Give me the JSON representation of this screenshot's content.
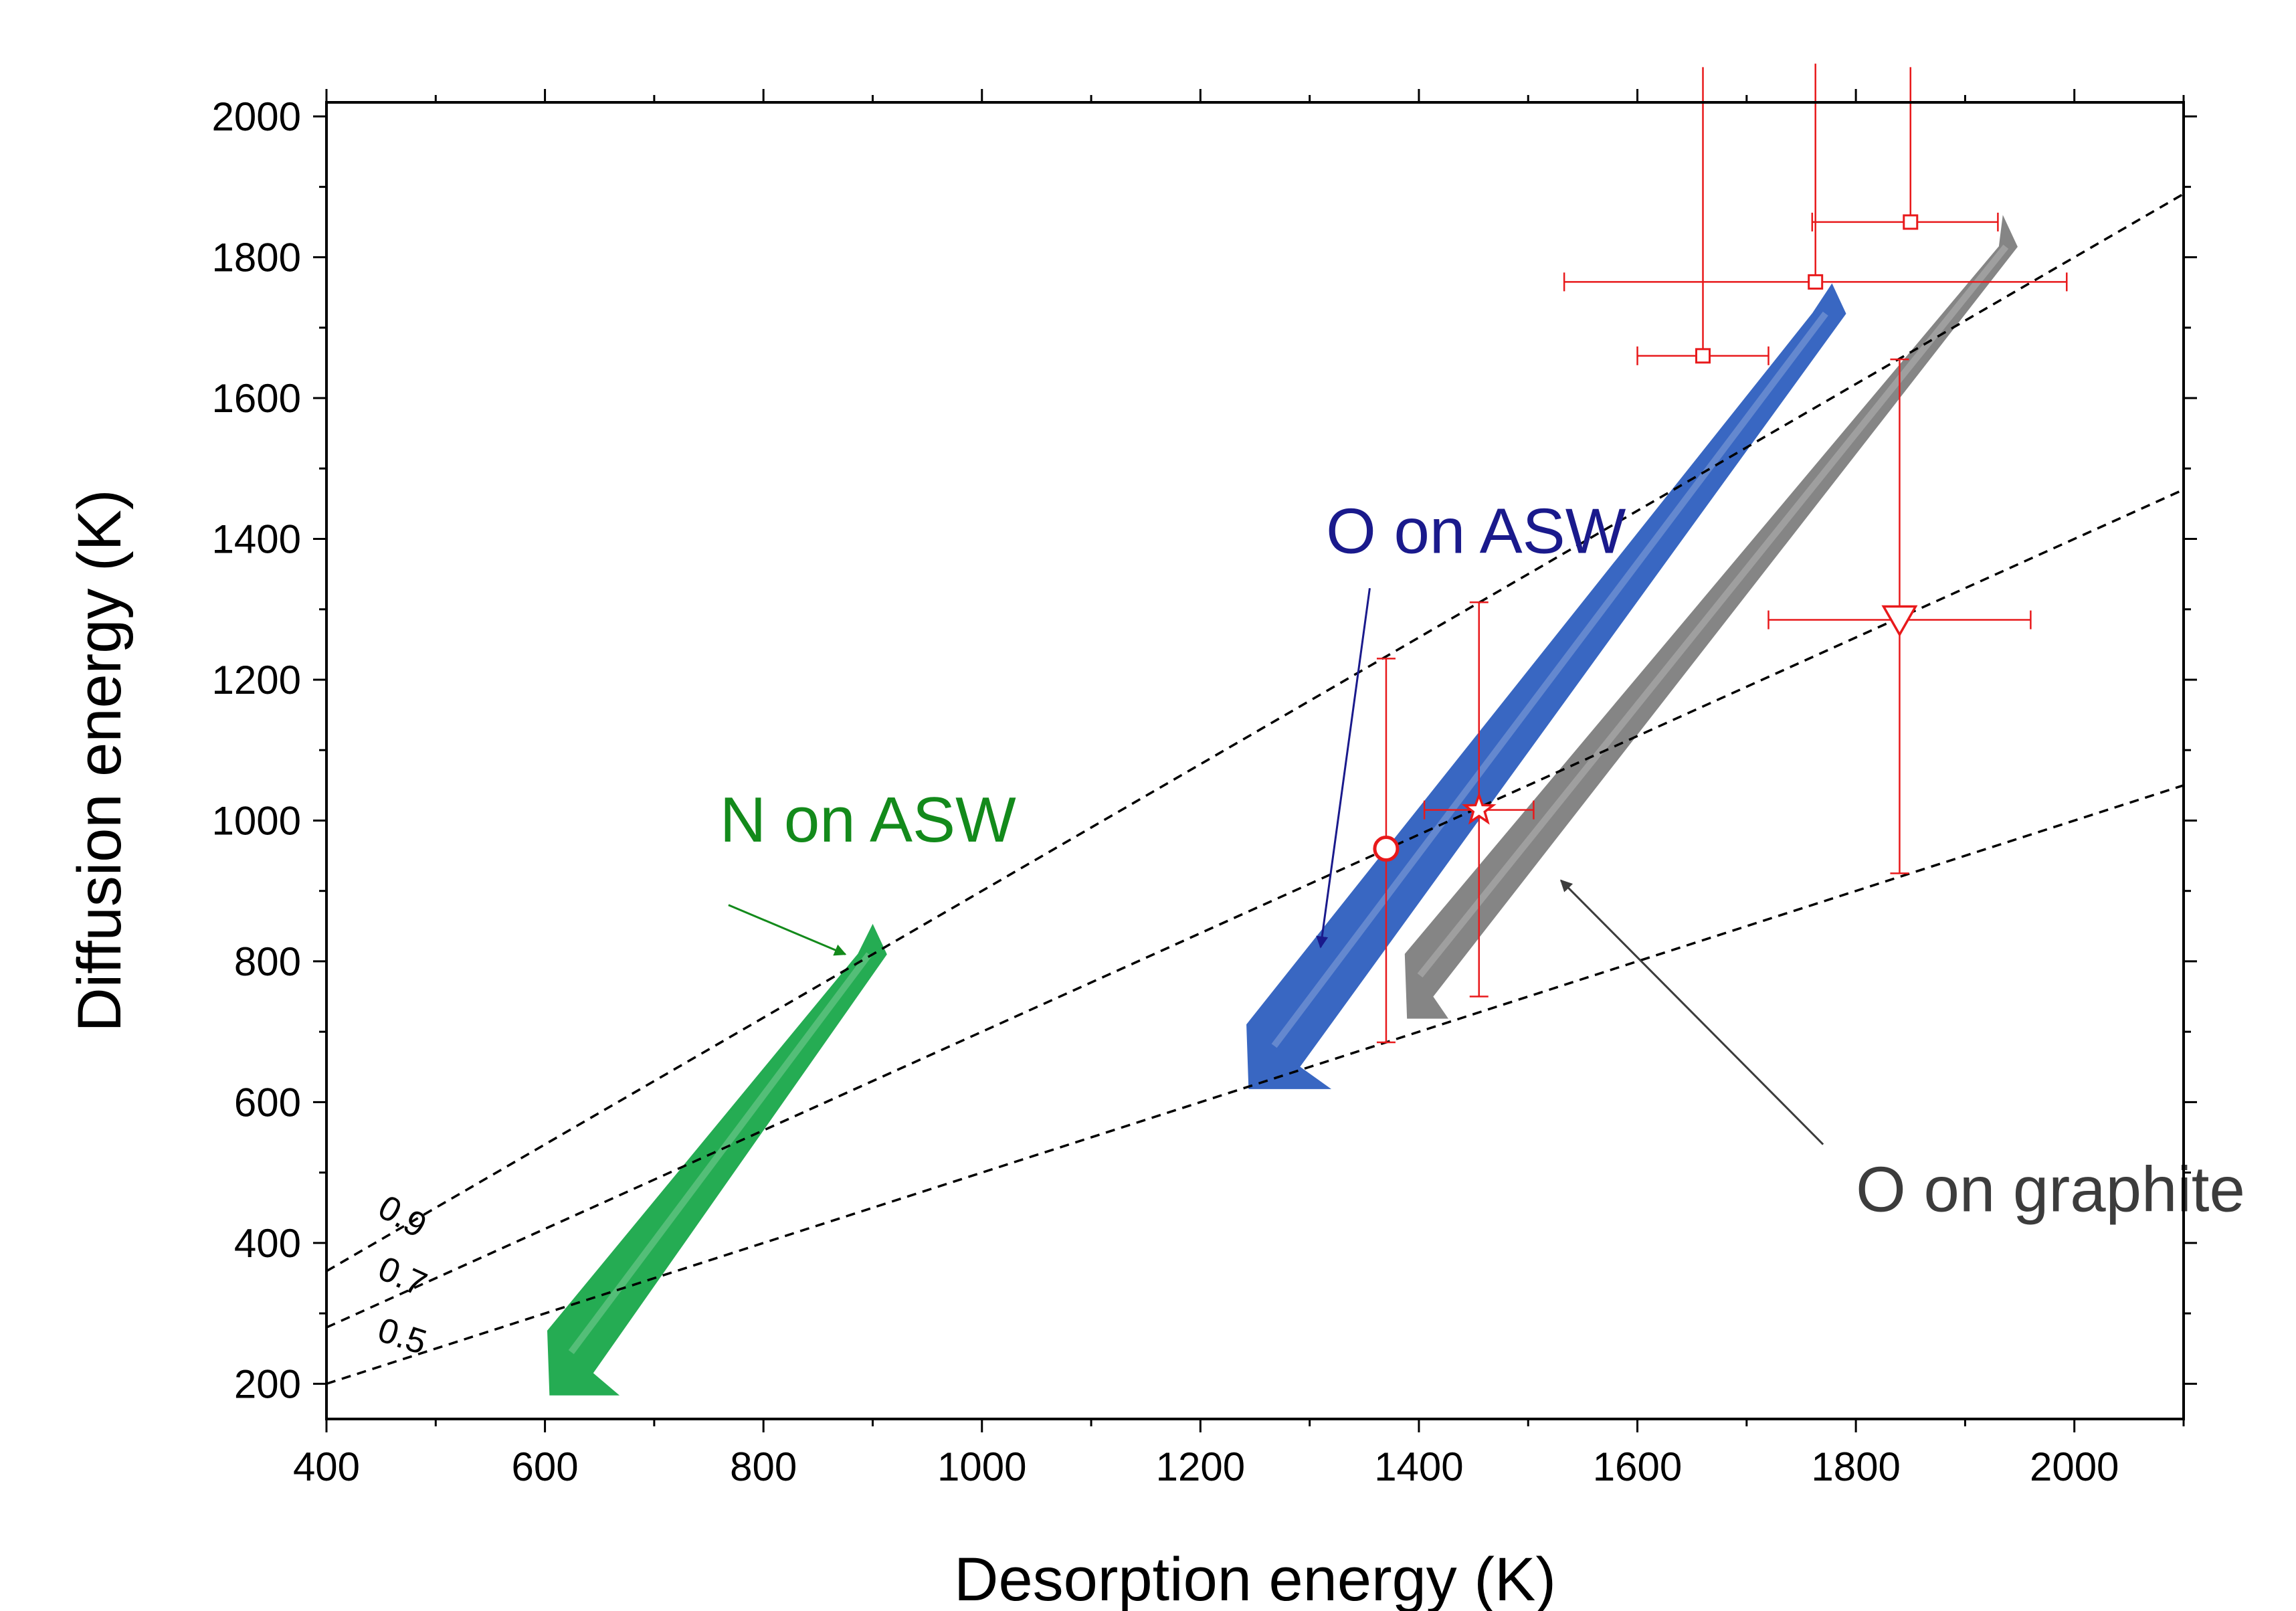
{
  "chart_data": {
    "type": "scatter",
    "title": "",
    "xlabel": "Desorption energy (K)",
    "ylabel": "Diffusion energy (K)",
    "xlim": [
      400,
      2100
    ],
    "ylim": [
      150,
      2020
    ],
    "xticks": [
      400,
      600,
      800,
      1000,
      1200,
      1400,
      1600,
      1800,
      2000
    ],
    "yticks": [
      200,
      400,
      600,
      800,
      1000,
      1200,
      1400,
      1600,
      1800,
      2000
    ],
    "grid": false,
    "ratio_lines": [
      {
        "ratio": 0.9,
        "label": "0.9"
      },
      {
        "ratio": 0.7,
        "label": "0.7"
      },
      {
        "ratio": 0.5,
        "label": "0.5"
      }
    ],
    "confidence_regions": [
      {
        "name": "N on ASW",
        "color": "#1aa84a",
        "label_color": "#138a1b",
        "start": [
          605,
          185
        ],
        "end": [
          910,
          850
        ],
        "width_x": 38
      },
      {
        "name": "O on ASW",
        "color": "#2f5fbf",
        "label_color": "#1a1a8c",
        "start": [
          1245,
          620
        ],
        "end": [
          1788,
          1760
        ],
        "width_x": 45
      },
      {
        "name": "O on graphite",
        "color": "#7f7f7f",
        "label_color": "#3c3c3c",
        "start": [
          1390,
          720
        ],
        "end": [
          1945,
          1855
        ],
        "width_x": 22
      }
    ],
    "annotations": [
      {
        "text": "N on ASW",
        "label_at": [
          760,
          970
        ],
        "arrow_from": [
          768,
          880
        ],
        "arrow_to": [
          875,
          810
        ]
      },
      {
        "text": "O on ASW",
        "label_at": [
          1315,
          1380
        ],
        "arrow_from": [
          1355,
          1330
        ],
        "arrow_to": [
          1310,
          820
        ]
      },
      {
        "text": "O on graphite",
        "label_at": [
          1800,
          445
        ],
        "arrow_from": [
          1770,
          540
        ],
        "arrow_to": [
          1530,
          915
        ]
      }
    ],
    "error_points": [
      {
        "marker": "circle",
        "x": 1370,
        "y": 960,
        "xerr": [
          0,
          0
        ],
        "yerr": [
          275,
          270
        ]
      },
      {
        "marker": "star",
        "x": 1455,
        "y": 1015,
        "xerr": [
          50,
          50
        ],
        "yerr": [
          265,
          295
        ]
      },
      {
        "marker": "triangle-down",
        "x": 1840,
        "y": 1285,
        "xerr": [
          120,
          120
        ],
        "yerr": [
          360,
          370
        ]
      },
      {
        "marker": "square",
        "x": 1660,
        "y": 1660,
        "xerr": [
          60,
          60
        ],
        "yerr": [
          0,
          410
        ]
      },
      {
        "marker": "square",
        "x": 1763,
        "y": 1765,
        "xerr": [
          230,
          230
        ],
        "yerr": [
          0,
          310
        ]
      },
      {
        "marker": "square",
        "x": 1850,
        "y": 1850,
        "xerr": [
          90,
          80
        ],
        "yerr": [
          0,
          220
        ]
      }
    ],
    "error_color": "#e8191b"
  }
}
